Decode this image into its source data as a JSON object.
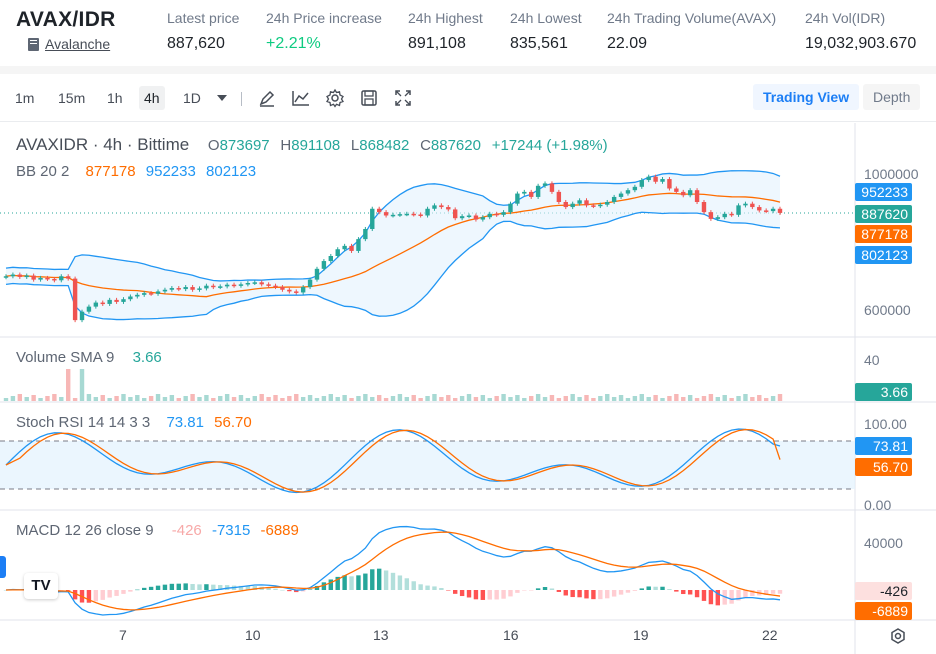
{
  "header": {
    "pair_title": "AVAX/IDR",
    "pair_link": "Avalanche",
    "stats": [
      {
        "label": "Latest price",
        "value": "887,620"
      },
      {
        "label": "24h Price increase",
        "value": "+2.21%"
      },
      {
        "label": "24h Highest",
        "value": "891,108"
      },
      {
        "label": "24h Lowest",
        "value": "835,561"
      },
      {
        "label": "24h Trading Volume(AVAX)",
        "value": "22.09"
      },
      {
        "label": "24h Vol(IDR)",
        "value": "19,032,903.670"
      }
    ]
  },
  "toolbar": {
    "timeframes": [
      "1m",
      "15m",
      "1h",
      "4h",
      "1D"
    ],
    "active_timeframe": "4h",
    "icons": [
      "draw-icon",
      "indicator-icon",
      "settings-icon",
      "save-icon",
      "fullscreen-icon"
    ],
    "views": {
      "trading_view": "Trading View",
      "depth": "Depth"
    }
  },
  "main_legend": {
    "symbol": "AVAXIDR · 4h · Bittime",
    "o_label": "O",
    "o": "873697",
    "h_label": "H",
    "h": "891108",
    "l_label": "L",
    "l": "868482",
    "c_label": "C",
    "c": "887620",
    "change": "+17244 (+1.98%)"
  },
  "bb_legend": {
    "name": "BB 20 2",
    "basis": "877178",
    "upper": "952233",
    "lower": "802123"
  },
  "volume_legend": {
    "name": "Volume SMA 9",
    "value": "3.66"
  },
  "stoch_legend": {
    "name": "Stoch RSI 14 14 3 3",
    "k": "73.81",
    "d": "56.70"
  },
  "macd_legend": {
    "name": "MACD 12 26 close 9",
    "hist": "-426",
    "macd": "-7315",
    "signal": "-6889"
  },
  "axes": {
    "price_ticks": [
      "1000000",
      "600000"
    ],
    "volume_ticks": [
      "40"
    ],
    "stoch_ticks": [
      "100.00",
      "0.00"
    ],
    "macd_ticks": [
      "40000"
    ],
    "dates": [
      "7",
      "10",
      "13",
      "16",
      "19",
      "22"
    ]
  },
  "badges": {
    "bb_upper": "952233",
    "last_price": "887620",
    "bb_basis": "877178",
    "bb_lower": "802123",
    "volume": "3.66",
    "stoch_k": "73.81",
    "stoch_d": "56.70",
    "macd_hist": "-426",
    "macd_signal": "-6889"
  },
  "colors": {
    "up": "#26a69a",
    "down": "#ef5350",
    "bb_band": "#2196f3",
    "bb_basis": "#ff6d00",
    "accent": "#1c7ef5",
    "green_text": "#0ecb81"
  },
  "chart_data": {
    "type": "candlestick",
    "price_close": [
      700000,
      705000,
      698000,
      702000,
      690000,
      695000,
      692000,
      688000,
      700000,
      693000,
      570000,
      595000,
      610000,
      622000,
      618000,
      630000,
      624000,
      632000,
      640000,
      645000,
      650000,
      648000,
      655000,
      660000,
      665000,
      662000,
      668000,
      660000,
      664000,
      672000,
      668000,
      670000,
      675000,
      672000,
      676000,
      680000,
      682000,
      676000,
      672000,
      668000,
      660000,
      655000,
      652000,
      668000,
      690000,
      722000,
      745000,
      760000,
      780000,
      790000,
      775000,
      810000,
      840000,
      900000,
      890000,
      880000,
      882000,
      884000,
      885000,
      883000,
      880000,
      900000,
      910000,
      905000,
      898000,
      872000,
      878000,
      880000,
      868000,
      875000,
      885000,
      882000,
      890000,
      915000,
      945000,
      950000,
      935000,
      968000,
      975000,
      950000,
      920000,
      905000,
      915000,
      925000,
      910000,
      908000,
      912000,
      920000,
      935000,
      945000,
      955000,
      965000,
      985000,
      995000,
      980000,
      988000,
      960000,
      950000,
      940000,
      955000,
      920000,
      890000,
      870000,
      875000,
      885000,
      882000,
      910000,
      915000,
      905000,
      895000,
      893000,
      900000,
      887620
    ],
    "volume_sma": 3.66,
    "stoch_k_last": 73.81,
    "stoch_d_last": 56.7,
    "macd_last": -7315,
    "signal_last": -6889,
    "hist_last": -426
  }
}
